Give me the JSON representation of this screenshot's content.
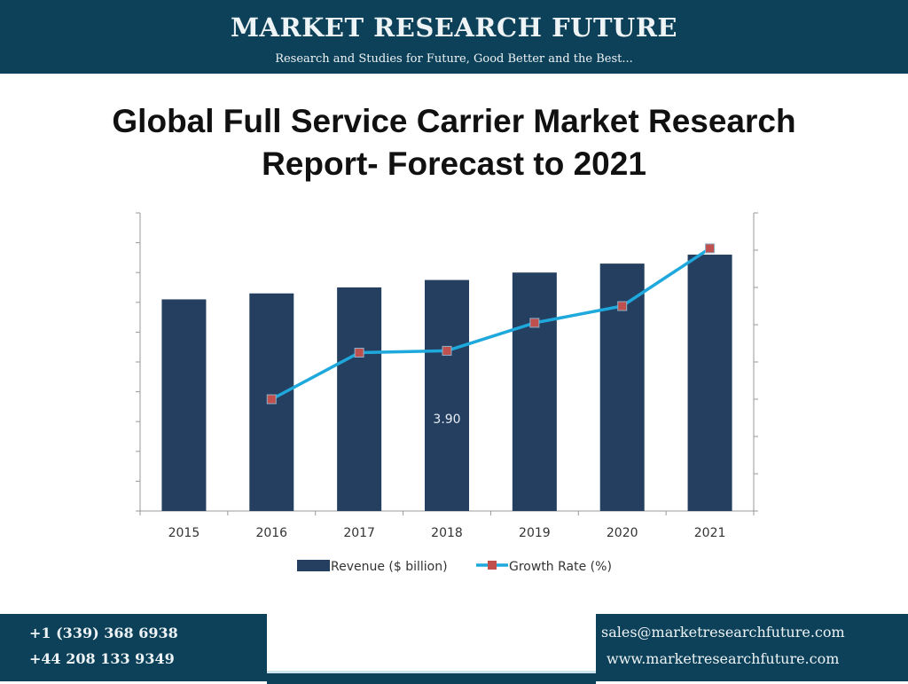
{
  "header": {
    "brand": "MARKET RESEARCH FUTURE",
    "tagline": "Research and Studies for Future, Good Better and the Best..."
  },
  "title_line1": "Global Full Service Carrier Market Research",
  "title_line2": "Report- Forecast to 2021",
  "chart_data": {
    "type": "bar+line",
    "categories": [
      "2015",
      "2016",
      "2017",
      "2018",
      "2019",
      "2020",
      "2021"
    ],
    "series": [
      {
        "name": "Revenue ($ billion)",
        "type": "bar",
        "axis": "left",
        "color": "#243f60",
        "values": [
          7.1,
          7.3,
          7.5,
          7.75,
          8.0,
          8.3,
          8.6
        ]
      },
      {
        "name": "Growth Rate (%)",
        "type": "line",
        "axis": "right",
        "color": "#1fa8dc",
        "marker_color": "#c0504d",
        "values": [
          null,
          3.0,
          4.25,
          4.3,
          5.05,
          5.5,
          7.05
        ]
      }
    ],
    "left_ylim": [
      0,
      10
    ],
    "right_ylim": [
      0,
      8
    ],
    "annotation": "3.90",
    "legend": "bottom",
    "grid": false
  },
  "footer": {
    "phone1": "+1 (339) 368 6938",
    "phone2": "+44 208 133 9349",
    "email": "sales@marketresearchfuture.com",
    "website": "www.marketresearchfuture.com"
  }
}
